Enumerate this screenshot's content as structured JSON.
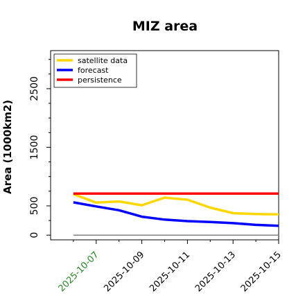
{
  "chart_data": {
    "type": "line",
    "title": "MIZ area",
    "xlabel": "",
    "ylabel": "Area (1000km2)",
    "x": [
      "2025-10-06",
      "2025-10-07",
      "2025-10-08",
      "2025-10-09",
      "2025-10-10",
      "2025-10-11",
      "2025-10-12",
      "2025-10-13",
      "2025-10-14",
      "2025-10-15"
    ],
    "x_ticks": [
      "2025-10-07",
      "2025-10-09",
      "2025-10-11",
      "2025-10-13",
      "2025-10-15"
    ],
    "x_tick_colors": [
      "#228b22",
      "#000000",
      "#000000",
      "#000000",
      "#000000"
    ],
    "xlim": [
      "2025-10-05",
      "2025-10-15"
    ],
    "y_ticks": [
      0,
      500,
      1500,
      2500
    ],
    "ylim": [
      -80,
      3150
    ],
    "grid": false,
    "legend_position": "top-left",
    "baseline": {
      "value": 0,
      "color": "#808080"
    },
    "series": [
      {
        "name": "satellite data",
        "color": "#FFD700",
        "values": [
          700,
          555,
          575,
          510,
          640,
          605,
          470,
          375,
          360,
          355
        ]
      },
      {
        "name": "forecast",
        "color": "#0000FF",
        "values": [
          560,
          490,
          425,
          315,
          265,
          240,
          225,
          205,
          175,
          160
        ]
      },
      {
        "name": "persistence",
        "color": "#FF0000",
        "values": [
          710,
          710,
          710,
          710,
          710,
          710,
          710,
          710,
          710,
          710
        ]
      }
    ]
  }
}
